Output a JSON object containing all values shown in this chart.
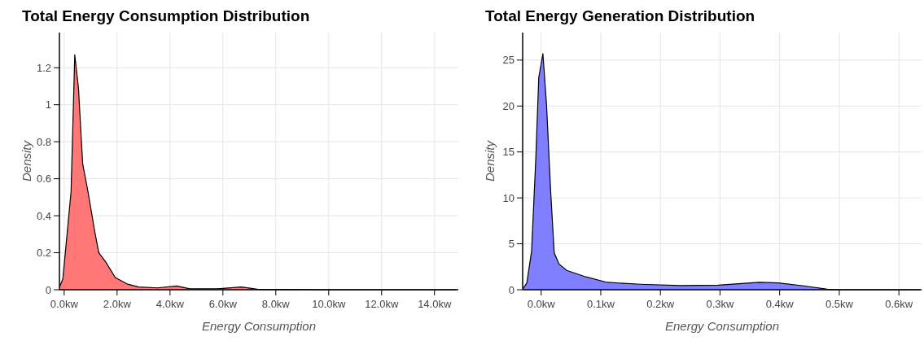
{
  "chart_data": [
    {
      "type": "area",
      "title": "Total Energy Consumption Distribution",
      "xlabel": "Energy Consumption",
      "ylabel": "Density",
      "grid": true,
      "xlim": [
        -0.18,
        14.9
      ],
      "ylim": [
        0,
        1.39
      ],
      "xticks": [
        {
          "value": 0,
          "label": "0.0kw"
        },
        {
          "value": 2,
          "label": "2.0kw"
        },
        {
          "value": 4,
          "label": "4.0kw"
        },
        {
          "value": 6,
          "label": "6.0kw"
        },
        {
          "value": 8,
          "label": "8.0kw"
        },
        {
          "value": 10,
          "label": "10.0kw"
        },
        {
          "value": 12,
          "label": "12.0kw"
        },
        {
          "value": 14,
          "label": "14.0kw"
        }
      ],
      "yticks": [
        0,
        0.2,
        0.4,
        0.6,
        0.8,
        1,
        1.2
      ],
      "x": [
        -0.16,
        -0.05,
        0.26,
        0.4,
        0.54,
        0.7,
        0.9,
        1.16,
        1.31,
        1.57,
        1.93,
        2.4,
        2.81,
        3.53,
        4.25,
        4.75,
        5.8,
        6.7,
        7.3,
        10,
        14.8
      ],
      "series": [
        {
          "color": "#ff7777",
          "values": [
            0.02,
            0.06,
            0.53,
            1.27,
            1.09,
            0.68,
            0.53,
            0.31,
            0.2,
            0.15,
            0.066,
            0.03,
            0.015,
            0.01,
            0.02,
            0.005,
            0.005,
            0.015,
            0.003,
            0,
            0
          ]
        }
      ]
    },
    {
      "type": "area",
      "title": "Total Energy Generation Distribution",
      "xlabel": "Energy Consumption",
      "ylabel": "Density",
      "grid": true,
      "xlim": [
        -0.031,
        0.638
      ],
      "ylim": [
        0,
        28
      ],
      "xticks": [
        {
          "value": 0,
          "label": "0.0kw"
        },
        {
          "value": 0.1,
          "label": "0.1kw"
        },
        {
          "value": 0.2,
          "label": "0.2kw"
        },
        {
          "value": 0.3,
          "label": "0.3kw"
        },
        {
          "value": 0.4,
          "label": "0.4kw"
        },
        {
          "value": 0.5,
          "label": "0.5kw"
        },
        {
          "value": 0.6,
          "label": "0.6kw"
        }
      ],
      "yticks": [
        0,
        5,
        10,
        15,
        20,
        25
      ],
      "x": [
        -0.03,
        -0.024,
        -0.016,
        -0.009,
        -0.004,
        0.003,
        0.009,
        0.016,
        0.022,
        0.03,
        0.043,
        0.075,
        0.111,
        0.166,
        0.234,
        0.297,
        0.366,
        0.398,
        0.443,
        0.48,
        0.5,
        0.635
      ],
      "series": [
        {
          "color": "#7f7fff",
          "values": [
            0.15,
            0.74,
            4.2,
            14.2,
            23.1,
            25.7,
            20.2,
            10.7,
            4,
            2.8,
            2.1,
            1.4,
            0.8,
            0.6,
            0.45,
            0.5,
            0.8,
            0.75,
            0.4,
            0.05,
            0,
            0
          ]
        }
      ]
    }
  ]
}
